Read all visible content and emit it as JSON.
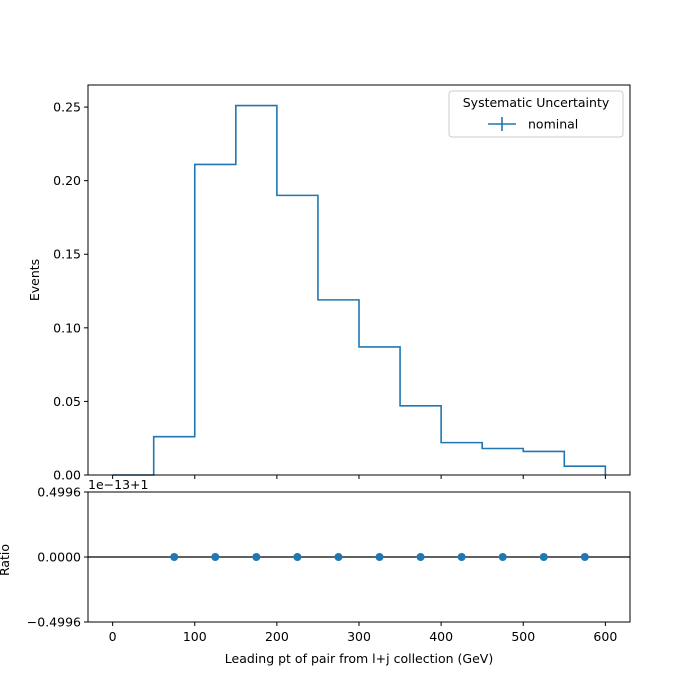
{
  "chart_data": [
    {
      "type": "step",
      "xlabel": "",
      "ylabel": "Events",
      "xlim": [
        -30,
        630
      ],
      "ylim": [
        0,
        0.265
      ],
      "xticks": [
        0,
        100,
        200,
        300,
        400,
        500,
        600
      ],
      "yticks": [
        "0.00",
        "0.05",
        "0.10",
        "0.15",
        "0.20",
        "0.25"
      ],
      "bin_edges": [
        0,
        50,
        100,
        150,
        200,
        250,
        300,
        350,
        400,
        450,
        500,
        550,
        600
      ],
      "series": [
        {
          "name": "nominal",
          "color": "#1f77b4",
          "values": [
            0.0,
            0.026,
            0.211,
            0.251,
            0.19,
            0.119,
            0.087,
            0.047,
            0.022,
            0.018,
            0.016,
            0.006
          ]
        }
      ],
      "legend": {
        "title": "Systematic Uncertainty",
        "entries": [
          "nominal"
        ],
        "placement": "top-right"
      }
    },
    {
      "type": "scatter",
      "xlabel": "Leading pt of pair from l+j collection (GeV)",
      "ylabel": "Ratio",
      "xlim": [
        -30,
        630
      ],
      "ylim": [
        -0.4996,
        0.4996
      ],
      "xticks": [
        "0",
        "100",
        "200",
        "300",
        "400",
        "500",
        "600"
      ],
      "yticks": [
        "−0.4996",
        "0.0000",
        "0.4996"
      ],
      "offset_text": "1e−13+1",
      "reference_line": 0,
      "series": [
        {
          "name": "",
          "color": "#1f77b4",
          "x": [
            75,
            125,
            175,
            225,
            275,
            325,
            375,
            425,
            475,
            525,
            575
          ],
          "y": [
            0,
            0,
            0,
            0,
            0,
            0,
            0,
            0,
            0,
            0,
            0
          ]
        }
      ]
    }
  ]
}
